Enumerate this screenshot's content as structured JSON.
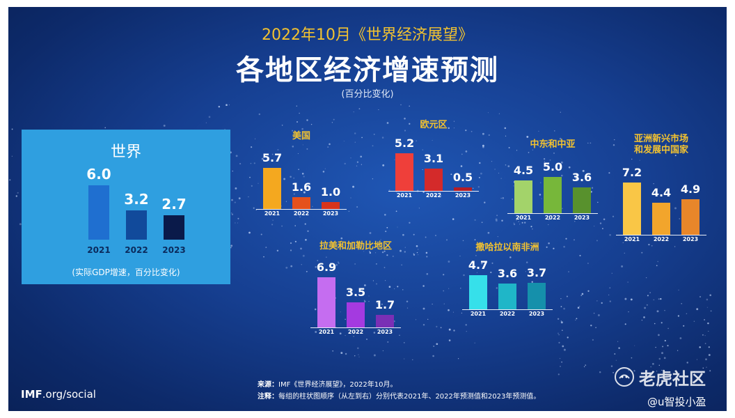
{
  "header": {
    "subtitle": "2022年10月《世界经济展望》",
    "title": "各地区经济增速预测",
    "unit": "(百分比变化)"
  },
  "chart_data": [
    {
      "type": "bar",
      "title": "世界",
      "categories": [
        "2021",
        "2022",
        "2023"
      ],
      "values": [
        6.0,
        3.2,
        2.7
      ],
      "value_labels": [
        "6.0",
        "3.2",
        "2.7"
      ],
      "colors": [
        "#1f6fd0",
        "#114a9b",
        "#0a1a4a"
      ],
      "note": "(实际GDP增速，百分比变化)"
    },
    {
      "type": "bar",
      "title": "美国",
      "categories": [
        "2021",
        "2022",
        "2023"
      ],
      "values": [
        5.7,
        1.6,
        1.0
      ],
      "value_labels": [
        "5.7",
        "1.6",
        "1.0"
      ],
      "colors": [
        "#f4a81f",
        "#e5511c",
        "#d8341b"
      ]
    },
    {
      "type": "bar",
      "title": "欧元区",
      "categories": [
        "2021",
        "2022",
        "2023"
      ],
      "values": [
        5.2,
        3.1,
        0.5
      ],
      "value_labels": [
        "5.2",
        "3.1",
        "0.5"
      ],
      "colors": [
        "#ef3f3a",
        "#d42a2a",
        "#b41d25"
      ]
    },
    {
      "type": "bar",
      "title": "中东和中亚",
      "categories": [
        "2021",
        "2022",
        "2023"
      ],
      "values": [
        4.5,
        5.0,
        3.6
      ],
      "value_labels": [
        "4.5",
        "5.0",
        "3.6"
      ],
      "colors": [
        "#a3d36a",
        "#77b73a",
        "#58912d"
      ]
    },
    {
      "type": "bar",
      "title": "亚洲新兴市场\n和发展中国家",
      "categories": [
        "2021",
        "2022",
        "2023"
      ],
      "values": [
        7.2,
        4.4,
        4.9
      ],
      "value_labels": [
        "7.2",
        "4.4",
        "4.9"
      ],
      "colors": [
        "#f9c646",
        "#f2a52c",
        "#e8862a"
      ]
    },
    {
      "type": "bar",
      "title": "拉美和加勒比地区",
      "categories": [
        "2021",
        "2022",
        "2023"
      ],
      "values": [
        6.9,
        3.5,
        1.7
      ],
      "value_labels": [
        "6.9",
        "3.5",
        "1.7"
      ],
      "colors": [
        "#c56df0",
        "#a43ae0",
        "#7a2fb5"
      ]
    },
    {
      "type": "bar",
      "title": "撒哈拉以南非洲",
      "categories": [
        "2021",
        "2022",
        "2023"
      ],
      "values": [
        4.7,
        3.6,
        3.7
      ],
      "value_labels": [
        "4.7",
        "3.6",
        "3.7"
      ],
      "colors": [
        "#36e0ea",
        "#1fb6c8",
        "#1590ab"
      ]
    }
  ],
  "footer": {
    "brand_bold": "IMF",
    "brand_rest": ".org/social",
    "source_label": "来源：",
    "source_text": "IMF《世界经济展望》，2022年10月。",
    "note_label": "注释：",
    "note_text": "每组的柱状图顺序（从左到右）分别代表2021年、2022年预测值和2023年预测值。"
  },
  "watermarks": {
    "site": "老虎社区",
    "site_icon": "tiger-logo-icon",
    "user": "@u智投小盈"
  }
}
